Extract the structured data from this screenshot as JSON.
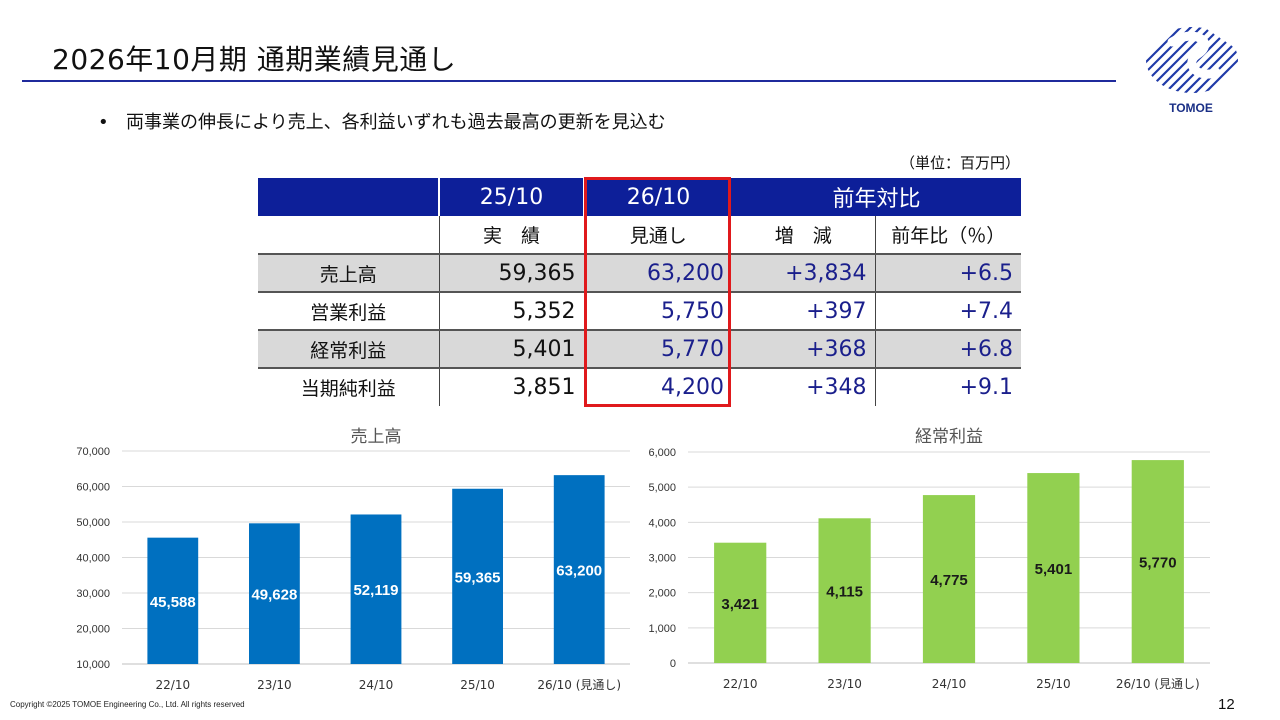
{
  "page": {
    "title": "2026年10月期 通期業績見通し",
    "bullet": "両事業の伸長により売上、各利益いずれも過去最高の更新を見込む",
    "unit": "（単位：百万円）",
    "logo_text": "TOMOE",
    "copyright": "Copyright ©2025 TOMOE Engineering Co., Ltd. All rights reserved",
    "page_number": "12",
    "colors": {
      "navy": "#0d1f99",
      "accent_red": "#e0191c",
      "bar_blue": "#0070c0",
      "bar_green": "#92d050"
    }
  },
  "table": {
    "group_headers": [
      "",
      "25/10",
      "26/10",
      "前年対比"
    ],
    "sub_headers": [
      "",
      "実　績",
      "見通し",
      "増　減",
      "前年比（％）"
    ],
    "rows": [
      {
        "label": "売上高",
        "actual": "59,365",
        "forecast": "63,200",
        "change": "+3,834",
        "ratio": "+6.5"
      },
      {
        "label": "営業利益",
        "actual": "5,352",
        "forecast": "5,750",
        "change": "+397",
        "ratio": "+7.4"
      },
      {
        "label": "経常利益",
        "actual": "5,401",
        "forecast": "5,770",
        "change": "+368",
        "ratio": "+6.8"
      },
      {
        "label": "当期純利益",
        "actual": "3,851",
        "forecast": "4,200",
        "change": "+348",
        "ratio": "+9.1"
      }
    ]
  },
  "chart_data": [
    {
      "type": "bar",
      "title": "売上高",
      "categories": [
        "22/10",
        "23/10",
        "24/10",
        "25/10",
        "26/10 (見通し)"
      ],
      "values": [
        45588,
        49628,
        52119,
        59365,
        63200
      ],
      "data_labels": [
        "45,588",
        "49,628",
        "52,119",
        "59,365",
        "63,200"
      ],
      "yticks": [
        "10,000",
        "20,000",
        "30,000",
        "40,000",
        "50,000",
        "60,000",
        "70,000"
      ],
      "ylim": [
        10000,
        70000
      ],
      "grid": true,
      "color": "#0070c0",
      "label_color": "#ffffff"
    },
    {
      "type": "bar",
      "title": "経常利益",
      "categories": [
        "22/10",
        "23/10",
        "24/10",
        "25/10",
        "26/10 (見通し)"
      ],
      "values": [
        3421,
        4115,
        4775,
        5401,
        5770
      ],
      "data_labels": [
        "3,421",
        "4,115",
        "4,775",
        "5,401",
        "5,770"
      ],
      "yticks": [
        "0",
        "1,000",
        "2,000",
        "3,000",
        "4,000",
        "5,000",
        "6,000"
      ],
      "ylim": [
        0,
        6000
      ],
      "grid": true,
      "color": "#92d050",
      "label_color": "#1a1a1a"
    }
  ]
}
